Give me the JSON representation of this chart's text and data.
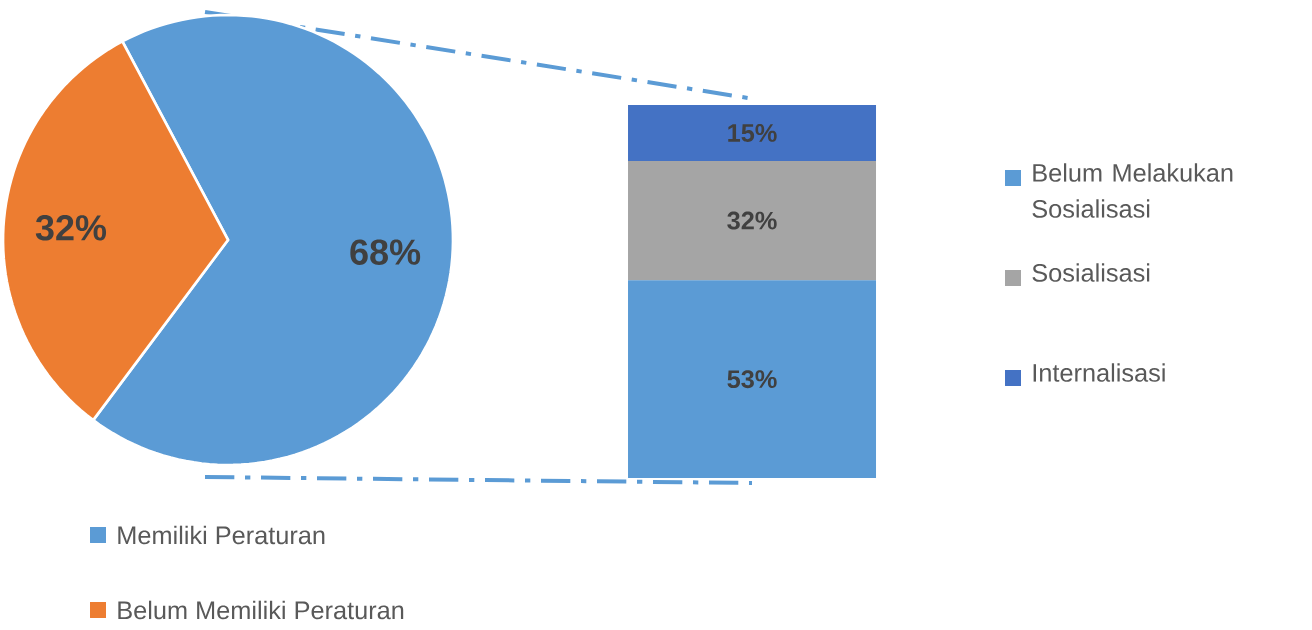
{
  "chart_data": [
    {
      "type": "pie",
      "categories": [
        "Memiliki Peraturan",
        "Belum Memiliki Peraturan"
      ],
      "values": [
        68,
        32
      ],
      "colors": [
        "#5b9bd5",
        "#ed7d31"
      ],
      "value_labels": [
        "68%",
        "32%"
      ],
      "legend": "bottom"
    },
    {
      "type": "bar",
      "stacked": true,
      "categories": [
        null
      ],
      "ylim": [
        0,
        100
      ],
      "tick_labels": false,
      "legend": "right",
      "series": [
        {
          "name": "Belum Melakukan Sosialisasi",
          "color": "#5b9bd5",
          "values": [
            53
          ],
          "value_labels": [
            "53%"
          ]
        },
        {
          "name": "Sosialisasi",
          "color": "#a5a5a5",
          "values": [
            32
          ],
          "value_labels": [
            "32%"
          ]
        },
        {
          "name": "Internalisasi",
          "color": "#4472c4",
          "values": [
            15
          ],
          "value_labels": [
            "15%"
          ]
        }
      ]
    }
  ]
}
